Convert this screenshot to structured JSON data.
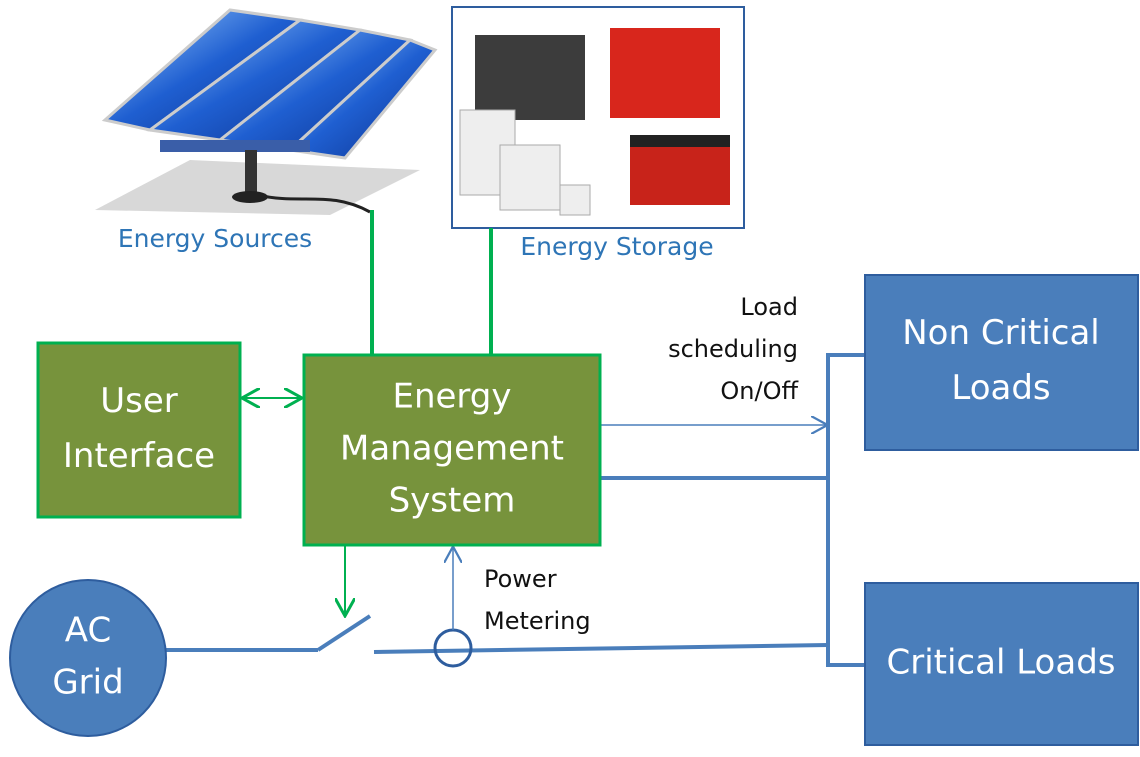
{
  "images": {
    "sources_label": "Energy Sources",
    "storage_label": "Energy Storage"
  },
  "nodes": [
    {
      "id": "ui",
      "lines": [
        "User",
        "Interface"
      ]
    },
    {
      "id": "ems",
      "lines": [
        "Energy",
        "Management",
        "System"
      ]
    },
    {
      "id": "noncritical",
      "lines": [
        "Non Critical",
        "Loads"
      ]
    },
    {
      "id": "critical",
      "lines": [
        "Critical Loads"
      ]
    },
    {
      "id": "grid",
      "lines": [
        "AC",
        "Grid"
      ]
    }
  ],
  "annotations": {
    "load_scheduling": [
      "Load",
      "scheduling",
      "On/Off"
    ],
    "power_metering": [
      "Power",
      "Metering"
    ]
  }
}
